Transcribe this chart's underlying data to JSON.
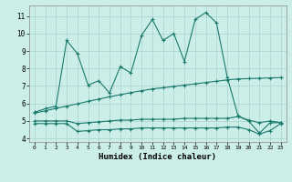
{
  "xlabel": "Humidex (Indice chaleur)",
  "bg_color": "#cceee8",
  "grid_color": "#aad4ce",
  "line_color": "#1a7a6e",
  "xlim": [
    -0.5,
    23.5
  ],
  "ylim": [
    3.8,
    11.6
  ],
  "yticks": [
    4,
    5,
    6,
    7,
    8,
    9,
    10,
    11
  ],
  "xticks": [
    0,
    1,
    2,
    3,
    4,
    5,
    6,
    7,
    8,
    9,
    10,
    11,
    12,
    13,
    14,
    15,
    16,
    17,
    18,
    19,
    20,
    21,
    22,
    23
  ],
  "line1_x": [
    0,
    1,
    2,
    3,
    4,
    5,
    6,
    7,
    8,
    9,
    10,
    11,
    12,
    13,
    14,
    15,
    16,
    17,
    18,
    19,
    20,
    21,
    22,
    23
  ],
  "line1_y": [
    5.5,
    5.7,
    5.85,
    9.6,
    8.85,
    7.05,
    7.3,
    6.6,
    8.1,
    7.75,
    9.9,
    10.8,
    9.6,
    10.0,
    8.4,
    10.8,
    11.2,
    10.6,
    7.5,
    5.3,
    5.0,
    4.3,
    4.9,
    4.9
  ],
  "line2_x": [
    0,
    1,
    2,
    3,
    4,
    5,
    6,
    7,
    8,
    9,
    10,
    11,
    12,
    13,
    14,
    15,
    16,
    17,
    18,
    19,
    20,
    21,
    22,
    23
  ],
  "line2_y": [
    5.0,
    5.0,
    5.0,
    5.0,
    4.85,
    4.9,
    4.95,
    5.0,
    5.05,
    5.05,
    5.1,
    5.1,
    5.1,
    5.1,
    5.15,
    5.15,
    5.15,
    5.15,
    5.15,
    5.25,
    5.05,
    4.9,
    5.0,
    4.9
  ],
  "line3_x": [
    0,
    1,
    2,
    3,
    4,
    5,
    6,
    7,
    8,
    9,
    10,
    11,
    12,
    13,
    14,
    15,
    16,
    17,
    18,
    19,
    20,
    21,
    22,
    23
  ],
  "line3_y": [
    4.85,
    4.85,
    4.85,
    4.85,
    4.4,
    4.45,
    4.5,
    4.5,
    4.55,
    4.55,
    4.6,
    4.6,
    4.6,
    4.6,
    4.6,
    4.6,
    4.6,
    4.6,
    4.65,
    4.65,
    4.5,
    4.25,
    4.45,
    4.85
  ],
  "line4_x": [
    0,
    1,
    2,
    3,
    4,
    5,
    6,
    7,
    8,
    9,
    10,
    11,
    12,
    13,
    14,
    15,
    16,
    17,
    18,
    19,
    20,
    21,
    22,
    23
  ],
  "line4_y": [
    5.45,
    5.58,
    5.72,
    5.85,
    5.98,
    6.12,
    6.25,
    6.38,
    6.5,
    6.62,
    6.73,
    6.83,
    6.9,
    6.97,
    7.05,
    7.12,
    7.2,
    7.27,
    7.35,
    7.4,
    7.42,
    7.44,
    7.46,
    7.48
  ]
}
